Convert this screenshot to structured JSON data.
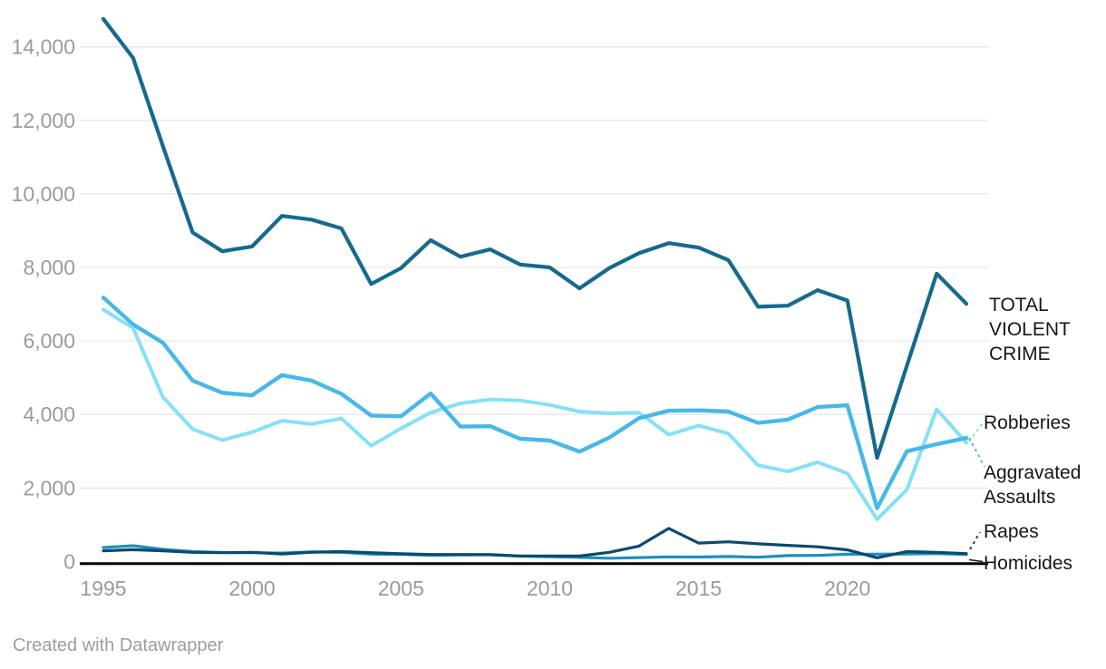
{
  "page": {
    "footer_credit": "Created with Datawrapper",
    "background_color": "#ffffff",
    "grid_color": "#e7e7e7",
    "axis_text_color": "#9b9b9b",
    "baseline_color": "#000000",
    "label_text_color": "#161616"
  },
  "chart_data": {
    "type": "line",
    "title": "",
    "xlabel": "",
    "ylabel": "",
    "x": [
      1995,
      1996,
      1997,
      1998,
      1999,
      2000,
      2001,
      2002,
      2003,
      2004,
      2005,
      2006,
      2007,
      2008,
      2009,
      2010,
      2011,
      2012,
      2013,
      2014,
      2015,
      2016,
      2017,
      2018,
      2019,
      2020,
      2021,
      2022,
      2023,
      2024
    ],
    "x_ticks": [
      1995,
      2000,
      2005,
      2010,
      2015,
      2020
    ],
    "x_tick_labels": [
      "1995",
      "2000",
      "2005",
      "2010",
      "2015",
      "2020"
    ],
    "y_ticks": [
      0,
      2000,
      4000,
      6000,
      8000,
      10000,
      12000,
      14000
    ],
    "y_tick_labels": [
      "0",
      "2,000",
      "4,000",
      "6,000",
      "8,000",
      "10,000",
      "12,000",
      "14,000"
    ],
    "ylim": [
      0,
      15000
    ],
    "grid": "horizontal",
    "legend_position": "right-direct-labels",
    "series": [
      {
        "id": "total",
        "label": "TOTAL VIOLENT CRIME",
        "color": "#16698f",
        "values": [
          14760,
          13700,
          11300,
          8950,
          8440,
          8570,
          9400,
          9300,
          9060,
          7550,
          7980,
          8740,
          8290,
          8490,
          8080,
          8000,
          7430,
          7980,
          8390,
          8660,
          8540,
          8200,
          6930,
          6960,
          7380,
          7100,
          2820,
          5320,
          7830,
          7010
        ]
      },
      {
        "id": "robberies",
        "label": "Robberies",
        "color": "#86e0f9",
        "values": [
          6850,
          6350,
          4470,
          3600,
          3300,
          3520,
          3830,
          3740,
          3890,
          3150,
          3620,
          4050,
          4300,
          4410,
          4380,
          4260,
          4080,
          4030,
          4050,
          3450,
          3700,
          3480,
          2620,
          2450,
          2700,
          2400,
          1150,
          1950,
          4140,
          3230
        ]
      },
      {
        "id": "aggravated",
        "label": "Aggravated Assaults",
        "color": "#47b8e8",
        "values": [
          7180,
          6450,
          5950,
          4920,
          4590,
          4520,
          5070,
          4920,
          4560,
          3970,
          3950,
          4570,
          3670,
          3680,
          3340,
          3290,
          2990,
          3370,
          3900,
          4100,
          4110,
          4080,
          3770,
          3860,
          4200,
          4250,
          1450,
          3000,
          3190,
          3360
        ]
      },
      {
        "id": "rapes",
        "label": "Rapes",
        "color": "#0b4a6f",
        "values": [
          290,
          320,
          290,
          250,
          240,
          250,
          205,
          255,
          270,
          240,
          210,
          190,
          190,
          185,
          150,
          150,
          150,
          250,
          420,
          900,
          500,
          535,
          480,
          440,
          400,
          315,
          100,
          270,
          250,
          215
        ]
      },
      {
        "id": "homicides",
        "label": "Homicides",
        "color": "#1d8fbe",
        "values": [
          380,
          430,
          330,
          270,
          245,
          240,
          230,
          260,
          250,
          200,
          195,
          170,
          180,
          185,
          145,
          130,
          110,
          90,
          105,
          125,
          120,
          135,
          116,
          160,
          166,
          198,
          200,
          205,
          215,
          190
        ]
      }
    ]
  }
}
